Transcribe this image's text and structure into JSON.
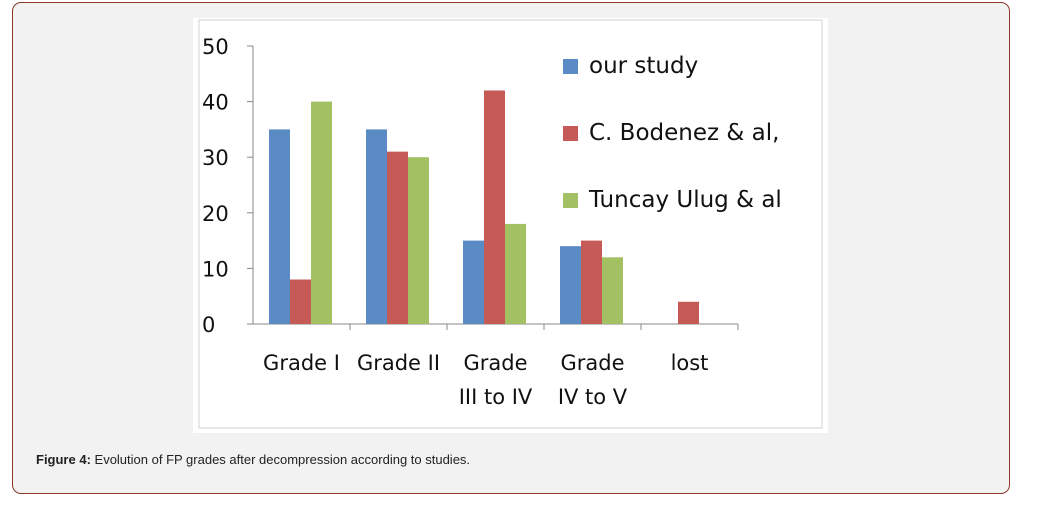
{
  "caption": {
    "label": "Figure 4:",
    "text": " Evolution of FP grades after decompression according to studies."
  },
  "chart_data": {
    "type": "bar",
    "title": "",
    "xlabel": "",
    "ylabel": "",
    "ylim": [
      0,
      50
    ],
    "yticks": [
      0,
      10,
      20,
      30,
      40,
      50
    ],
    "categories": [
      [
        "Grade I"
      ],
      [
        "Grade II"
      ],
      [
        "Grade",
        "III to IV"
      ],
      [
        "Grade",
        "IV to  V"
      ],
      [
        "lost"
      ]
    ],
    "series": [
      {
        "name": "our study",
        "color": "#5b8bc5",
        "values": [
          35,
          35,
          15,
          14,
          null
        ]
      },
      {
        "name": "C. Bodenez & al,",
        "color": "#c65a57",
        "values": [
          8,
          31,
          42,
          15,
          4
        ]
      },
      {
        "name": "Tuncay Ulug & al",
        "color": "#a3c163",
        "values": [
          40,
          30,
          18,
          12,
          null
        ]
      }
    ],
    "legend": "right",
    "grid": false
  }
}
